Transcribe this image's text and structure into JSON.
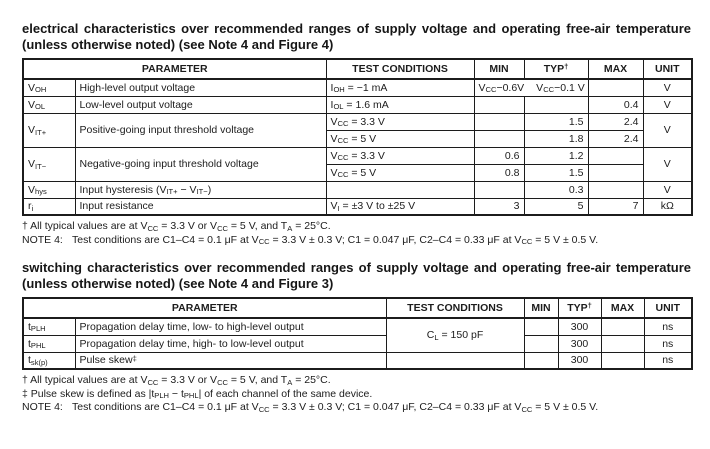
{
  "electrical": {
    "title": "electrical characteristics over recommended ranges of supply voltage and operating free-air temperature (unless otherwise noted) (see Note 4 and Figure 4)",
    "headers": {
      "parameter": "PARAMETER",
      "test": "TEST CONDITIONS",
      "min": "MIN",
      "typ": "TYP^†^",
      "max": "MAX",
      "unit": "UNIT"
    },
    "rows": {
      "voh": {
        "symbol": "V~OH~",
        "name": "High-level output voltage",
        "test": "I~OH~ = −1 mA",
        "min": "V~CC~−0.6V",
        "typ": "V~CC~−0.1 V",
        "max": "",
        "unit": "V"
      },
      "vol": {
        "symbol": "V~OL~",
        "name": "Low-level output voltage",
        "test": "I~OL~ = 1.6 mA",
        "min": "",
        "typ": "",
        "max": "0.4",
        "unit": "V"
      },
      "vitp": {
        "symbol": "V~IT+~",
        "name": "Positive-going input threshold voltage",
        "cond1": {
          "test": "V~CC~ = 3.3 V",
          "min": "",
          "typ": "1.5",
          "max": "2.4"
        },
        "cond2": {
          "test": "V~CC~ = 5 V",
          "min": "",
          "typ": "1.8",
          "max": "2.4"
        },
        "unit": "V"
      },
      "vitm": {
        "symbol": "V~IT−~",
        "name": "Negative-going input threshold voltage",
        "cond1": {
          "test": "V~CC~ = 3.3 V",
          "min": "0.6",
          "typ": "1.2",
          "max": ""
        },
        "cond2": {
          "test": "V~CC~ = 5 V",
          "min": "0.8",
          "typ": "1.5",
          "max": ""
        },
        "unit": "V"
      },
      "vhys": {
        "symbol": "V~hys~",
        "name": "Input hysteresis (V~IT+~ − V~IT−~)",
        "test": "",
        "min": "",
        "typ": "0.3",
        "max": "",
        "unit": "V"
      },
      "ri": {
        "symbol": "r~i~",
        "name": "Input resistance",
        "test": "V~I~ = ±3 V to ±25 V",
        "min": "3",
        "typ": "5",
        "max": "7",
        "unit": "kΩ"
      }
    },
    "footnotes": {
      "dagger": "† All typical values are at V~CC~ = 3.3 V or V~CC~ = 5 V, and T~A~ = 25°C.",
      "note4_label": "NOTE 4:",
      "note4_text": "Test conditions are C1–C4 = 0.1 μF at V~CC~ = 3.3 V ± 0.3 V; C1 = 0.047 μF, C2–C4 = 0.33 μF at V~CC~ = 5 V ± 0.5 V."
    }
  },
  "switching": {
    "title": "switching characteristics over recommended ranges of supply voltage and operating free-air temperature (unless otherwise noted) (see Note 4 and Figure 3)",
    "headers": {
      "parameter": "PARAMETER",
      "test": "TEST CONDITIONS",
      "min": "MIN",
      "typ": "TYP^†^",
      "max": "MAX",
      "unit": "UNIT"
    },
    "shared_test": "C~L~ = 150 pF",
    "rows": {
      "tplh": {
        "symbol": "t~PLH~",
        "name": "Propagation delay time, low- to high-level output",
        "min": "",
        "typ": "300",
        "max": "",
        "unit": "ns"
      },
      "tphl": {
        "symbol": "t~PHL~",
        "name": "Propagation delay time, high- to low-level output",
        "min": "",
        "typ": "300",
        "max": "",
        "unit": "ns"
      },
      "tskp": {
        "symbol": "t~sk(p)~",
        "name": "Pulse skew^‡^",
        "test": "",
        "min": "",
        "typ": "300",
        "max": "",
        "unit": "ns"
      }
    },
    "footnotes": {
      "dagger": "† All typical values are at V~CC~ = 3.3 V or V~CC~ = 5 V, and T~A~ = 25°C.",
      "ddagger": "‡ Pulse skew is defined as |t~PLH~ − t~PHL~| of each channel of the same device.",
      "note4_label": "NOTE 4:",
      "note4_text": "Test conditions are C1–C4 = 0.1 μF at V~CC~ = 3.3 V ± 0.3 V; C1 = 0.047 μF, C2–C4 = 0.33 μF at V~CC~ = 5 V ± 0.5 V."
    }
  }
}
